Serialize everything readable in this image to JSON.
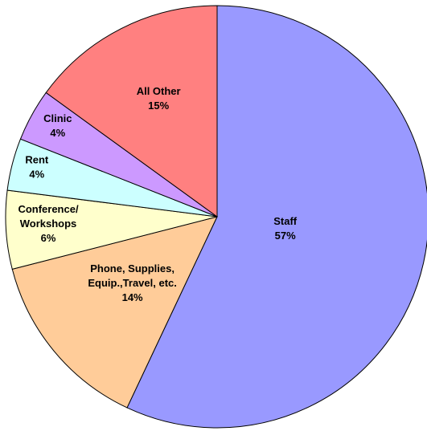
{
  "chart_data": {
    "type": "pie",
    "categories": [
      "Staff",
      "Phone, Supplies,\nEquip.,Travel, etc.",
      "Conference/\nWorkshops",
      "Rent",
      "Clinic",
      "All Other"
    ],
    "values": [
      57,
      14,
      6,
      4,
      4,
      15
    ],
    "value_labels": [
      "57%",
      "14%",
      "6%",
      "4%",
      "4%",
      "15%"
    ],
    "colors": [
      "#9999ff",
      "#ffcc99",
      "#ffffcc",
      "#ccffff",
      "#cc99ff",
      "#ff8080"
    ]
  }
}
